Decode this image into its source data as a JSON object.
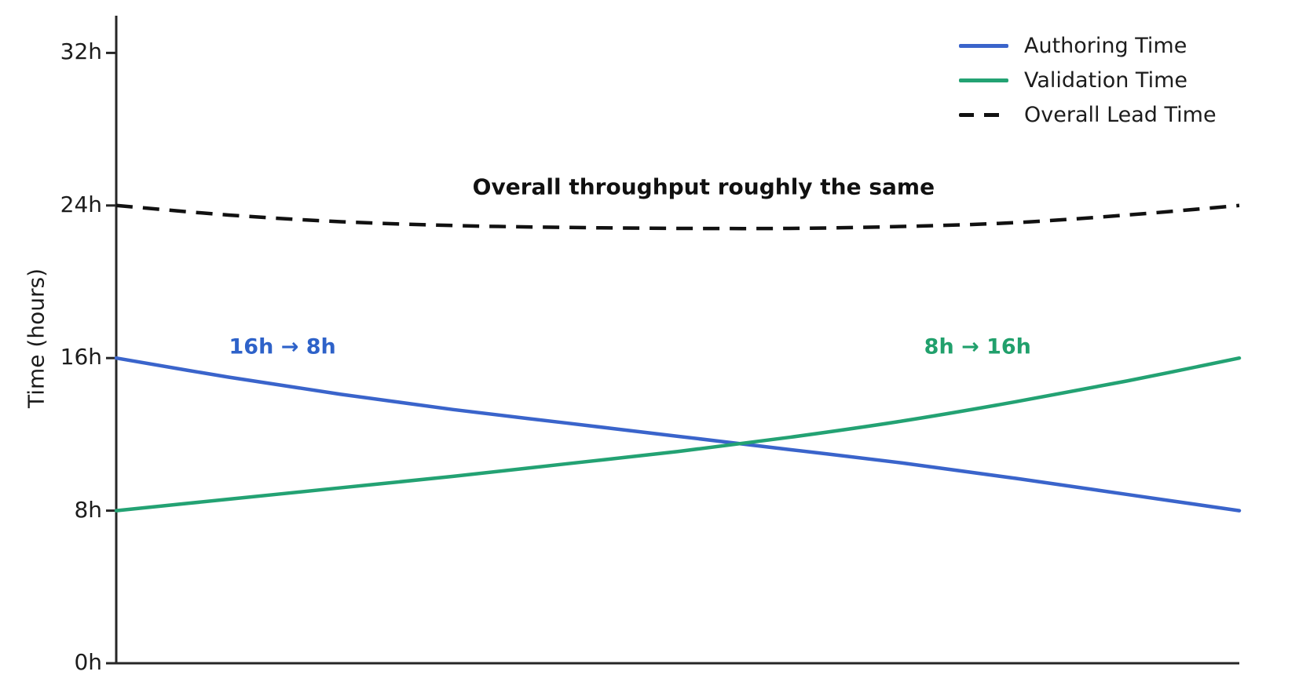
{
  "chart_data": {
    "type": "line",
    "title": "",
    "xlabel": "",
    "ylabel": "Time (hours)",
    "x": [
      0,
      0.1,
      0.2,
      0.3,
      0.4,
      0.5,
      0.6,
      0.7,
      0.8,
      0.9,
      1.0
    ],
    "xlim": [
      0,
      1
    ],
    "ylim": [
      0,
      34
    ],
    "grid": false,
    "legend_position": "upper right",
    "yticks": [
      {
        "value": 0,
        "label": "0h"
      },
      {
        "value": 8,
        "label": "8h"
      },
      {
        "value": 16,
        "label": "16h"
      },
      {
        "value": 24,
        "label": "24h"
      },
      {
        "value": 32,
        "label": "32h"
      }
    ],
    "series": [
      {
        "name": "Authoring Time",
        "color": "#3a64cb",
        "style": "solid",
        "values": [
          16,
          15.0,
          14.1,
          13.3,
          12.6,
          11.9,
          11.2,
          10.5,
          9.7,
          8.85,
          8
        ]
      },
      {
        "name": "Validation Time",
        "color": "#23a273",
        "style": "solid",
        "values": [
          8,
          8.6,
          9.2,
          9.8,
          10.45,
          11.1,
          11.85,
          12.7,
          13.7,
          14.8,
          16
        ]
      },
      {
        "name": "Overall Lead Time",
        "color": "#111111",
        "style": "dashed",
        "values": [
          24,
          23.5,
          23.15,
          22.95,
          22.85,
          22.8,
          22.8,
          22.9,
          23.1,
          23.5,
          24
        ]
      }
    ],
    "annotations": [
      {
        "text": "Overall throughput roughly the same",
        "color": "#111111",
        "x": 0.523,
        "y": 25.0,
        "kind": "center"
      },
      {
        "text": "16h → 8h",
        "color": "#2e62c9",
        "x": 0.148,
        "y": 16.58,
        "kind": "side"
      },
      {
        "text": "8h → 16h",
        "color": "#21a06c",
        "x": 0.767,
        "y": 16.58,
        "kind": "side"
      }
    ]
  }
}
